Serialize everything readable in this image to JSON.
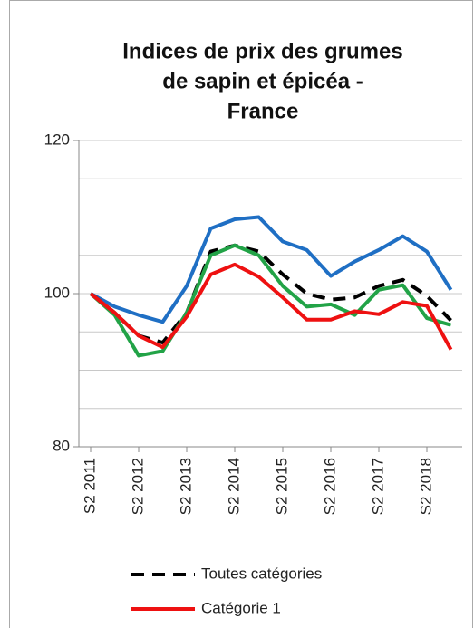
{
  "chart_data": {
    "type": "line",
    "title": [
      "Indices de prix des grumes",
      "de sapin et épicéa   -",
      "France"
    ],
    "categories": [
      "S2 2011",
      null,
      "S2 2012",
      null,
      "S2 2013",
      null,
      "S2 2014",
      null,
      "S2 2015",
      null,
      "S2 2016",
      null,
      "S2 2017",
      null,
      "S2 2018",
      null
    ],
    "series": [
      {
        "color": "#1f6fc4",
        "values": [
          100,
          98.3,
          97.2,
          96.3,
          101,
          108.5,
          109.7,
          110,
          106.8,
          105.7,
          102.3,
          104.2,
          105.7,
          107.5,
          105.5,
          100.5
        ]
      },
      {
        "name": "Toutes catégories",
        "color": "#000000",
        "dashed": true,
        "values": [
          100,
          97.5,
          94.5,
          93.6,
          97.5,
          105.5,
          106.3,
          105.5,
          102.5,
          100,
          99.2,
          99.5,
          101,
          101.8,
          99.7,
          96.5
        ]
      },
      {
        "color": "#22a347",
        "values": [
          100,
          97.2,
          91.9,
          92.5,
          97.5,
          105,
          106.3,
          105,
          101,
          98.3,
          98.6,
          97.2,
          100.5,
          101.1,
          96.8,
          95.9
        ]
      },
      {
        "name": "Catégorie 1",
        "color": "#ee1111",
        "values": [
          100,
          97.5,
          94.5,
          93,
          97,
          102.5,
          103.8,
          102.2,
          99.5,
          96.6,
          96.6,
          97.7,
          97.3,
          98.9,
          98.4,
          92.7
        ]
      }
    ],
    "ylim": [
      80,
      120
    ],
    "yticks": [
      80,
      100,
      120
    ],
    "grid_yticks": [
      85,
      90,
      95,
      105,
      110,
      115
    ],
    "grid": true
  }
}
